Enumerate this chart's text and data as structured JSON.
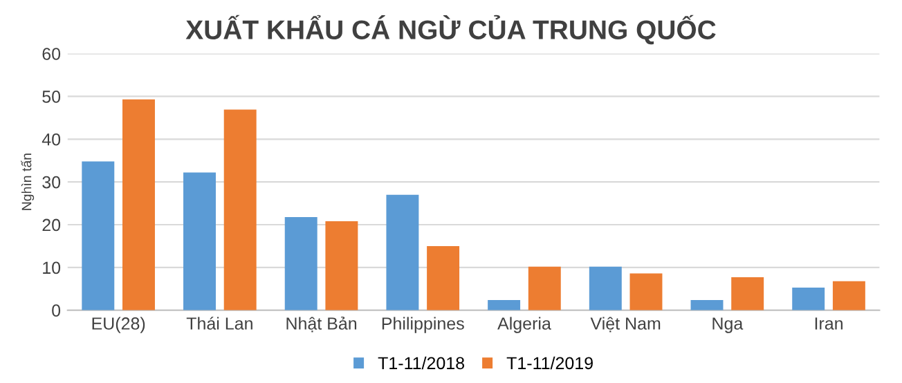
{
  "chart_data": {
    "type": "bar",
    "title": "XUẤT KHẨU CÁ NGỪ CỦA TRUNG QUỐC",
    "ylabel": "Nghìn tấn",
    "categories": [
      "EU(28)",
      "Thái Lan",
      "Nhật Bản",
      "Philippines",
      "Algeria",
      "Việt Nam",
      "Nga",
      "Iran"
    ],
    "series": [
      {
        "name": "T1-11/2018",
        "color": "#5b9bd5",
        "values": [
          34.8,
          32.2,
          21.8,
          27,
          2.4,
          10.2,
          2.4,
          5.3
        ]
      },
      {
        "name": "T1-11/2019",
        "color": "#ed7d31",
        "values": [
          49.3,
          46.9,
          20.8,
          15,
          10.2,
          8.6,
          7.7,
          6.8
        ]
      }
    ],
    "ylim": [
      0,
      60
    ],
    "yticks": [
      0,
      10,
      20,
      30,
      40,
      50,
      60
    ],
    "grid": "y",
    "legend": "bottom"
  }
}
